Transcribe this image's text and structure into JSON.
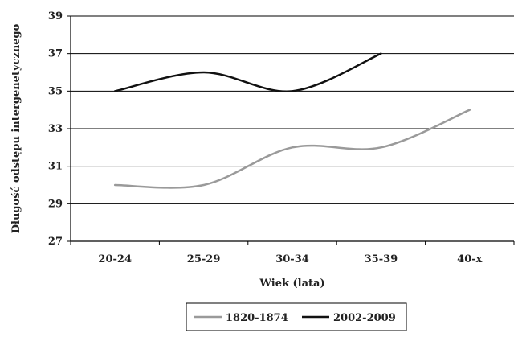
{
  "chart_data": {
    "type": "line",
    "categories": [
      "20-24",
      "25-29",
      "30-34",
      "35-39",
      "40-x"
    ],
    "xlabel": "Wiek (lata)",
    "ylabel": "Długość odstępu intergenetycznego",
    "ylim": [
      27,
      39
    ],
    "yticks": [
      27,
      29,
      31,
      33,
      35,
      37,
      39
    ],
    "grid": true,
    "legend_position": "bottom",
    "smooth": true,
    "series": [
      {
        "name": "1820-1874",
        "color": "#9a9a9a",
        "values": [
          30,
          30,
          32,
          32,
          34
        ]
      },
      {
        "name": "2002-2009",
        "color": "#111111",
        "values": [
          35,
          36,
          35,
          37,
          null
        ]
      }
    ]
  }
}
